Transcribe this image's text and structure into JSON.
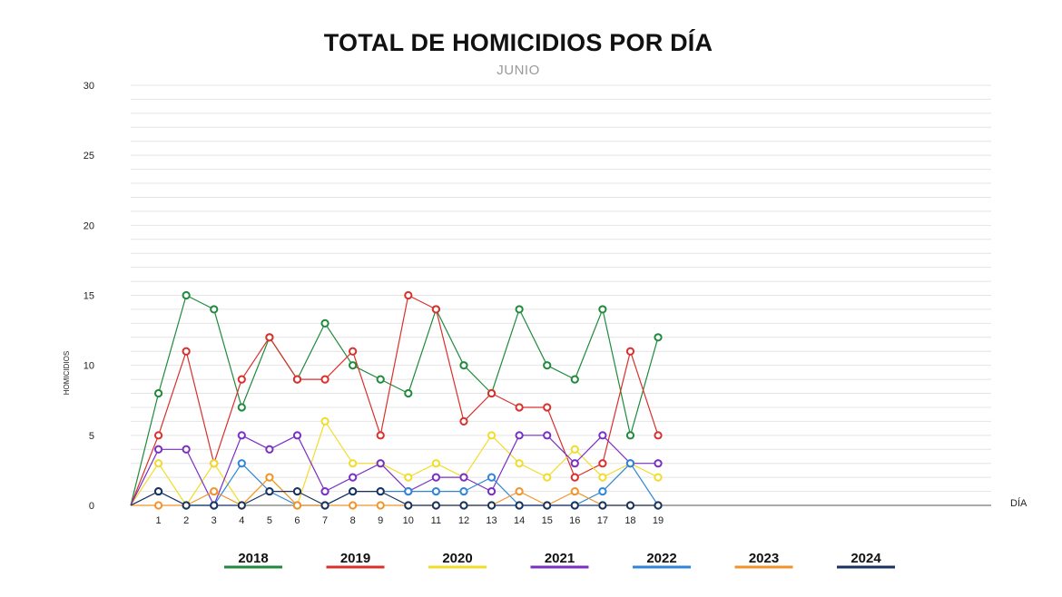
{
  "chart_data": {
    "type": "line",
    "title": "TOTAL DE HOMICIDIOS POR DÍA",
    "subtitle": "JUNIO",
    "xlabel": "DÍA",
    "ylabel": "HOMICIDIOS",
    "ylim": [
      0,
      30
    ],
    "y_ticks": [
      0,
      5,
      10,
      15,
      20,
      25,
      30
    ],
    "x_range": [
      0,
      31
    ],
    "grid": true,
    "legend_position": "bottom",
    "x": [
      1,
      2,
      3,
      4,
      5,
      6,
      7,
      8,
      9,
      10,
      11,
      12,
      13,
      14,
      15,
      16,
      17,
      18,
      19
    ],
    "series": [
      {
        "name": "2018",
        "color": "#1f8a3c",
        "values": [
          8,
          15,
          14,
          7,
          12,
          9,
          13,
          10,
          9,
          8,
          14,
          10,
          8,
          14,
          10,
          9,
          14,
          5,
          12
        ]
      },
      {
        "name": "2019",
        "color": "#d9302c",
        "values": [
          5,
          11,
          3,
          9,
          12,
          9,
          9,
          11,
          5,
          15,
          14,
          6,
          8,
          7,
          7,
          2,
          3,
          11,
          5
        ]
      },
      {
        "name": "2020",
        "color": "#f2dc2a",
        "values": [
          3,
          0,
          3,
          0,
          2,
          0,
          6,
          3,
          3,
          2,
          3,
          2,
          5,
          3,
          2,
          4,
          2,
          3,
          2
        ]
      },
      {
        "name": "2021",
        "color": "#7a2fc4",
        "values": [
          4,
          4,
          0,
          5,
          4,
          5,
          1,
          2,
          3,
          1,
          2,
          2,
          1,
          5,
          5,
          3,
          5,
          3,
          3
        ]
      },
      {
        "name": "2022",
        "color": "#2f86d9",
        "values": [
          1,
          0,
          0,
          3,
          1,
          0,
          0,
          1,
          1,
          1,
          1,
          1,
          2,
          0,
          0,
          0,
          1,
          3,
          0
        ]
      },
      {
        "name": "2023",
        "color": "#f2932a",
        "values": [
          0,
          0,
          1,
          0,
          2,
          0,
          0,
          0,
          0,
          0,
          0,
          0,
          0,
          1,
          0,
          1,
          0,
          0,
          0
        ]
      },
      {
        "name": "2024",
        "color": "#17325e",
        "values": [
          1,
          0,
          0,
          0,
          1,
          1,
          0,
          1,
          1,
          0,
          0,
          0,
          0,
          0,
          0,
          0,
          0,
          0,
          0
        ]
      }
    ]
  }
}
